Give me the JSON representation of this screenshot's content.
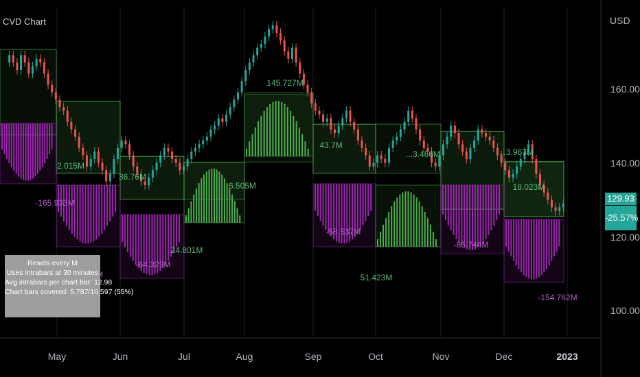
{
  "title": "CVD Chart",
  "currency": "USD",
  "price_axis": [
    "160.00",
    "140.00",
    "120.00",
    "100.00"
  ],
  "last_price": "129.93",
  "last_change": "-25.57%",
  "info_box": {
    "line1": "Resets every M",
    "line2": "Uses intrabars at 30 minutes",
    "line3": "Avg intrabars per chart bar: 12.98",
    "line4": "Chart bars covered: 5,787/10,597 (55%)"
  },
  "x_labels": [
    "May",
    "Jun",
    "Jul",
    "Aug",
    "Sep",
    "Oct",
    "Nov",
    "Dec",
    "2023"
  ],
  "colors": {
    "up": "#26a69a",
    "down": "#ef5350",
    "positive_volume": "#4caf50",
    "negative_volume": "#9c27b0",
    "label_green": "#5cb87a",
    "label_purple": "#b55fc9"
  },
  "chart_data": {
    "type": "candlestick",
    "y_range": [
      94,
      183
    ],
    "months": [
      {
        "start": "Apr",
        "price_box": [
          148.5,
          171.5
        ],
        "cvd": {
          "sign": "neg",
          "label": "-165.933M",
          "max_abs": 165.933
        }
      },
      {
        "start": "May",
        "price_box": [
          138.2,
          157.6
        ],
        "cvd": {
          "sign": "pos",
          "label": "2.015M",
          "max_abs": 2.015
        }
      },
      {
        "start": "May",
        "price_box": [
          138.2,
          157.6
        ],
        "cvd": {
          "sign": "neg",
          "label": "-...651M",
          "max_abs": 180
        }
      },
      {
        "start": "Jun",
        "price_box": [
          131.2,
          142.7
        ],
        "cvd": {
          "sign": "pos",
          "label": "36.76M",
          "max_abs": 36.76
        }
      },
      {
        "start": "Jun",
        "price_box": [
          131.2,
          142.7
        ],
        "cvd": {
          "sign": "neg",
          "label": "-64.329M",
          "max_abs": 64.329
        }
      },
      {
        "start": "Jul",
        "price_box": [
          131.2,
          142.7
        ],
        "cvd": {
          "sign": "pos",
          "label": "24.801M",
          "max_abs": 24.801
        }
      },
      {
        "start": "Jul",
        "price_box": [
          131.2,
          141.2
        ],
        "cvd": {
          "sign": "pos",
          "label": "6.505M",
          "max_abs": 6.505
        }
      },
      {
        "start": "Aug",
        "price_box": [
          141.2,
          159.8
        ],
        "cvd": {
          "sign": "pos",
          "label": "145.727M",
          "max_abs": 145.727
        }
      },
      {
        "start": "Sep",
        "price_box": [
          138.2,
          151.4
        ],
        "cvd": {
          "sign": "pos",
          "label": "43.7M",
          "max_abs": 43.7
        }
      },
      {
        "start": "Sep",
        "price_box": [
          138.2,
          151.4
        ],
        "cvd": {
          "sign": "neg",
          "label": "-58.537M",
          "max_abs": 58.537
        }
      },
      {
        "start": "Oct",
        "price_box": [
          138.2,
          151.4
        ],
        "cvd": {
          "sign": "pos",
          "label": "51.423M",
          "max_abs": 51.423
        }
      },
      {
        "start": "Nov",
        "price_box": [
          128.5,
          149.5
        ],
        "cvd": {
          "sign": "pos",
          "label": "...3.466M",
          "max_abs": 3.466
        }
      },
      {
        "start": "Nov",
        "price_box": [
          128.5,
          149.5
        ],
        "cvd": {
          "sign": "neg",
          "label": "-85.744M",
          "max_abs": 85.744
        }
      },
      {
        "start": "Dec",
        "price_box": [
          126.5,
          141.3
        ],
        "cvd": {
          "sign": "pos",
          "label": "...3.963M",
          "max_abs": 3.963
        }
      },
      {
        "start": "Dec",
        "price_box": [
          126.5,
          141.3
        ],
        "cvd": {
          "sign": "pos",
          "label": "18.023M",
          "max_abs": 18.023
        }
      },
      {
        "start": "Dec",
        "price_box": [
          126.5,
          141.3
        ],
        "cvd": {
          "sign": "neg",
          "label": "-154.762M",
          "max_abs": 154.762
        }
      }
    ],
    "close_path": [
      168,
      170,
      168,
      166,
      170,
      168,
      165,
      167,
      169,
      168,
      165,
      162,
      160,
      158,
      156,
      155,
      152,
      150,
      148,
      145,
      143,
      140,
      142,
      144,
      141,
      139,
      136,
      138,
      142,
      145,
      147,
      146,
      143,
      140,
      138,
      136,
      135,
      137,
      139,
      141,
      143,
      145,
      144,
      142,
      141,
      139,
      140,
      142,
      144,
      145,
      146,
      147,
      148,
      150,
      151,
      153,
      152,
      154,
      156,
      158,
      160,
      163,
      166,
      168,
      170,
      172,
      173,
      175,
      177,
      178,
      176,
      174,
      171,
      169,
      172,
      168,
      165,
      162,
      160,
      157,
      155,
      154,
      152,
      153,
      150,
      149,
      151,
      153,
      155,
      152,
      150,
      147,
      145,
      143,
      140,
      141,
      143,
      142,
      141,
      145,
      147,
      148,
      150,
      152,
      155,
      153,
      150,
      147,
      145,
      144,
      141,
      140,
      143,
      146,
      148,
      151,
      149,
      146,
      144,
      142,
      145,
      147,
      150,
      149,
      148,
      147,
      145,
      143,
      141,
      139,
      137,
      138,
      140,
      142,
      144,
      146,
      142,
      138,
      135,
      133,
      131,
      129,
      128,
      129,
      130
    ]
  }
}
